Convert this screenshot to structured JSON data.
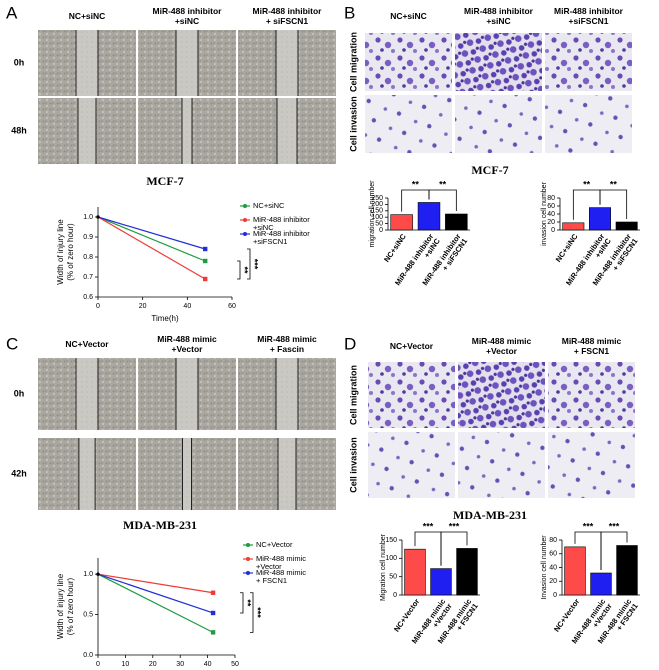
{
  "panels": [
    {
      "label": "A",
      "columns": [
        [
          "NC+siNC"
        ],
        [
          "MiR-488 inhibitor",
          "+siNC"
        ],
        [
          "MiR-488 inhibitor",
          "+ siFSCN1"
        ]
      ],
      "rows": [
        "0h",
        "48h"
      ],
      "cell_line": "MCF-7"
    },
    {
      "label": "B",
      "columns": [
        [
          "NC+siNC"
        ],
        [
          "MiR-488 inhibitor",
          "+siNC"
        ],
        [
          "MiR-488 inhibitor",
          "+siFSCN1"
        ]
      ],
      "rows": [
        "Cell migration",
        "Cell invasion"
      ],
      "cell_line": "MCF-7"
    },
    {
      "label": "C",
      "columns": [
        [
          "NC+Vector"
        ],
        [
          "MiR-488 mimic",
          "+Vector"
        ],
        [
          "MiR-488 mimic",
          "+ Fascin"
        ]
      ],
      "rows": [
        "0h",
        "42h"
      ],
      "cell_line": "MDA-MB-231"
    },
    {
      "label": "D",
      "columns": [
        [
          "NC+Vector"
        ],
        [
          "MiR-488 mimic",
          "+Vector"
        ],
        [
          "MiR-488 mimic",
          "+ FSCN1"
        ]
      ],
      "rows": [
        "Cell migration",
        "Cell invasion"
      ],
      "cell_line": "MDA-MB-231"
    }
  ],
  "chart_data": [
    {
      "type": "line",
      "x": [
        0,
        48
      ],
      "xlim": [
        0,
        60
      ],
      "xticks": [
        0,
        20,
        40,
        60
      ],
      "ylim": [
        0.6,
        1.05
      ],
      "yticks": [
        0.6,
        0.7,
        0.8,
        0.9,
        {
          "value": 1,
          "label": "1.0"
        }
      ],
      "xlabel": "Time(h)",
      "ylabel": [
        "Width of injury line",
        "(% of zero hour)"
      ],
      "series": [
        {
          "name": [
            "NC+siNC"
          ],
          "color": "#1e9b3c",
          "values": [
            1,
            0.78
          ]
        },
        {
          "name": [
            "MiR-488 inhibitor",
            "+siNC"
          ],
          "color": "#ee3b34",
          "values": [
            1,
            0.69
          ]
        },
        {
          "name": [
            "MiR-488 inhibitor",
            "+siFSCN1"
          ],
          "color": "#1f2fd6",
          "values": [
            1,
            0.84
          ]
        }
      ],
      "annotations": [
        "**",
        "***"
      ]
    },
    {
      "type": "bar",
      "categories": [
        [
          "NC+siNC"
        ],
        [
          "MiR-488 inhibitor",
          "+siNC"
        ],
        [
          "MiR-488 inhibitor",
          "+ siFSCN1"
        ]
      ],
      "values": [
        120,
        215,
        125
      ],
      "colors": [
        "#ff4a4a",
        "#1f1ff2",
        "#000000"
      ],
      "ylim": [
        0,
        250
      ],
      "yticks": [
        0,
        50,
        100,
        150,
        200,
        250
      ],
      "ylabel": "migration cell number",
      "annotations": [
        "**",
        "**"
      ]
    },
    {
      "type": "bar",
      "categories": [
        [
          "NC+siNC"
        ],
        [
          "MiR-488 inhibitor",
          "+siNC"
        ],
        [
          "MiR-488 inhibitor",
          "+ siFSCN1"
        ]
      ],
      "values": [
        18,
        56,
        20
      ],
      "colors": [
        "#ff4a4a",
        "#1f1ff2",
        "#000000"
      ],
      "ylim": [
        0,
        80
      ],
      "yticks": [
        0,
        20,
        40,
        60,
        80
      ],
      "ylabel": "invasion cell number",
      "annotations": [
        "**",
        "**"
      ]
    },
    {
      "type": "line",
      "x": [
        0,
        42
      ],
      "xlim": [
        0,
        50
      ],
      "xticks": [
        0,
        10,
        20,
        30,
        40,
        50
      ],
      "ylim": [
        0,
        1.2
      ],
      "yticks": [
        {
          "value": 0,
          "label": "0.0"
        },
        0.5,
        {
          "value": 1,
          "label": "1.0"
        }
      ],
      "xlabel": "Time(h)",
      "ylabel": [
        "Width of injury line",
        "(% of zero hour)"
      ],
      "series": [
        {
          "name": [
            "NC+Vector"
          ],
          "color": "#1e9b3c",
          "values": [
            1,
            0.28
          ]
        },
        {
          "name": [
            "MiR-488 mimic",
            "+Vector"
          ],
          "color": "#ee3b34",
          "values": [
            1,
            0.77
          ]
        },
        {
          "name": [
            "MiR-488 mimic",
            "+ FSCN1"
          ],
          "color": "#1f2fd6",
          "values": [
            1,
            0.52
          ]
        }
      ],
      "annotations": [
        "**",
        "***"
      ]
    },
    {
      "type": "bar",
      "categories": [
        [
          "NC+Vector"
        ],
        [
          "MiR-488 mimic",
          "+Vector"
        ],
        [
          "MiR-488 mimic",
          "+ FSCN1"
        ]
      ],
      "values": [
        125,
        72,
        127
      ],
      "colors": [
        "#ff4a4a",
        "#1f1ff2",
        "#000000"
      ],
      "ylim": [
        0,
        150
      ],
      "yticks": [
        0,
        50,
        100,
        150
      ],
      "ylabel": "Migration cell number",
      "annotations": [
        "***",
        "***"
      ]
    },
    {
      "type": "bar",
      "categories": [
        [
          "NC+Vector"
        ],
        [
          "MiR-488 mimic",
          "+Vector"
        ],
        [
          "MiR-488 mimic",
          "+ FSCN1"
        ]
      ],
      "values": [
        70,
        32,
        72
      ],
      "colors": [
        "#ff4a4a",
        "#1f1ff2",
        "#000000"
      ],
      "ylim": [
        0,
        80
      ],
      "yticks": [
        0,
        20,
        40,
        60,
        80
      ],
      "ylabel": "Invasion cell number",
      "annotations": [
        "***",
        "***"
      ]
    }
  ]
}
